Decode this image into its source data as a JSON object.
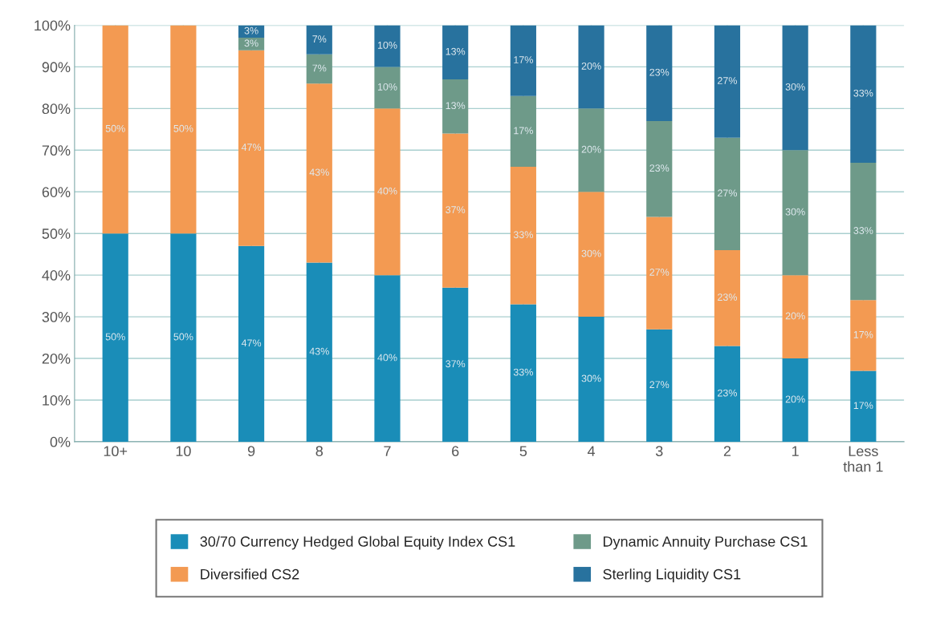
{
  "chart_data": {
    "type": "bar",
    "stacked": true,
    "categories": [
      "10+",
      "10",
      "9",
      "8",
      "7",
      "6",
      "5",
      "4",
      "3",
      "2",
      "1",
      "Less\nthan 1"
    ],
    "series": [
      {
        "name": "30/70 Currency Hedged Global Equity Index CS1",
        "color": "#1a8db8",
        "values": [
          50,
          50,
          47,
          43,
          40,
          37,
          33,
          30,
          27,
          23,
          20,
          17
        ],
        "value_labels": [
          "50%",
          "50%",
          "47%",
          "43%",
          "40%",
          "37%",
          "33%",
          "30%",
          "27%",
          "23%",
          "20%",
          "17%"
        ]
      },
      {
        "name": "Diversified CS2",
        "color": "#f39a52",
        "values": [
          50,
          50,
          47,
          43,
          40,
          37,
          33,
          30,
          27,
          23,
          20,
          17
        ],
        "value_labels": [
          "50%",
          "50%",
          "47%",
          "43%",
          "40%",
          "37%",
          "33%",
          "30%",
          "27%",
          "23%",
          "20%",
          "17%"
        ]
      },
      {
        "name": "Dynamic Annuity Purchase CS1",
        "color": "#6e9a89",
        "values": [
          null,
          null,
          3,
          7,
          10,
          13,
          17,
          20,
          23,
          27,
          30,
          33
        ],
        "value_labels": [
          null,
          null,
          "3%",
          "7%",
          "10%",
          "13%",
          "17%",
          "20%",
          "23%",
          "27%",
          "30%",
          "33%"
        ]
      },
      {
        "name": "Sterling Liquidity CS1",
        "color": "#28729e",
        "values": [
          null,
          null,
          3,
          7,
          10,
          13,
          17,
          20,
          23,
          27,
          30,
          33
        ],
        "value_labels": [
          null,
          null,
          "3%",
          "7%",
          "10%",
          "13%",
          "17%",
          "20%",
          "23%",
          "27%",
          "30%",
          "33%"
        ]
      }
    ],
    "ylim": [
      0,
      100
    ],
    "yticks": [
      {
        "value": 0,
        "label": "0%"
      },
      {
        "value": 10,
        "label": "10%"
      },
      {
        "value": 20,
        "label": "20%"
      },
      {
        "value": 30,
        "label": "30%"
      },
      {
        "value": 40,
        "label": "40%"
      },
      {
        "value": 50,
        "label": "50%"
      },
      {
        "value": 60,
        "label": "60%"
      },
      {
        "value": 70,
        "label": "70%"
      },
      {
        "value": 80,
        "label": "80%"
      },
      {
        "value": 90,
        "label": "90%"
      },
      {
        "value": 100,
        "label": "100%"
      }
    ],
    "grid": true,
    "legend": "bottom"
  }
}
